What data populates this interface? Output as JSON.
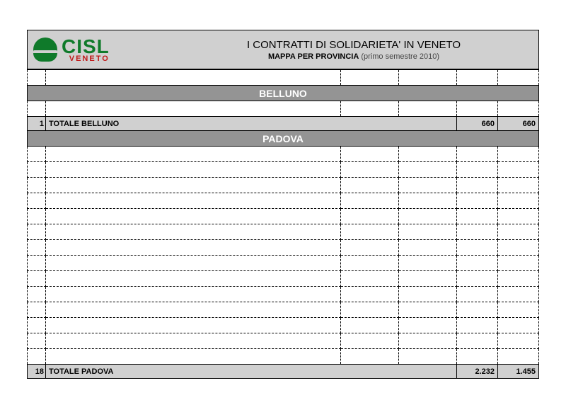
{
  "logo": {
    "text_top": "CISL",
    "text_bottom": "VENETO",
    "green": "#0f7a2a",
    "red": "#c01818"
  },
  "header": {
    "title": "I CONTRATTI DI SOLIDARIETA' IN VENETO",
    "subtitle_bold": "MAPPA PER PROVINCIA",
    "subtitle_light": "(primo semestre 2010)"
  },
  "sections": [
    {
      "name": "BELLUNO",
      "blank_rows_before": 1,
      "blank_rows_inside": 1,
      "total": {
        "index": "1",
        "label": "TOTALE BELLUNO",
        "val1": "660",
        "val2": "660"
      }
    },
    {
      "name": "PADOVA",
      "blank_rows_before": 0,
      "blank_rows_inside": 14,
      "total": {
        "index": "18",
        "label": "TOTALE PADOVA",
        "val1": "2.232",
        "val2": "1.455"
      }
    }
  ],
  "colors": {
    "header_bg": "#d0d0d0",
    "section_bg": "#949494",
    "section_fg": "#ffffff",
    "total_bg": "#d0d0d0"
  }
}
